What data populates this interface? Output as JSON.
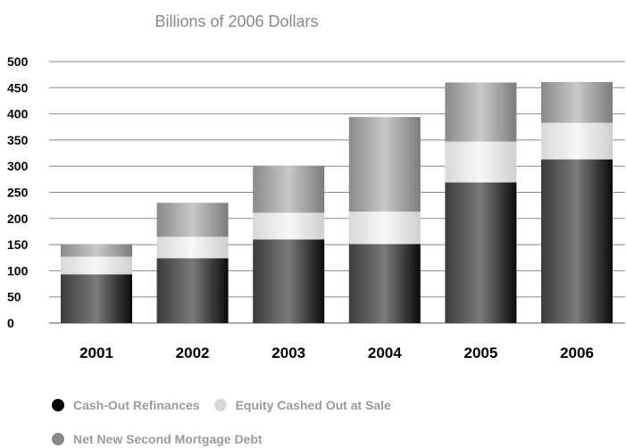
{
  "chart_data": {
    "type": "bar",
    "stacked": true,
    "title": "",
    "subtitle": "Billions of 2006 Dollars",
    "xlabel": "",
    "ylabel": "",
    "ylim": [
      0,
      500
    ],
    "yticks": [
      "0",
      "50",
      "100",
      "150",
      "200",
      "250",
      "300",
      "350",
      "400",
      "450",
      "500"
    ],
    "grid": true,
    "legend_position": "bottom-left",
    "categories": [
      "2001",
      "2002",
      "2003",
      "2004",
      "2005",
      "2006"
    ],
    "series": [
      {
        "name": "Cash-Out Refinances",
        "color": "#1a1a1a",
        "values": [
          93,
          124,
          160,
          151,
          269,
          313
        ]
      },
      {
        "name": "Equity Cashed Out at Sale",
        "color": "#e6e6e6",
        "values": [
          34,
          41,
          51,
          62,
          78,
          70
        ]
      },
      {
        "name": "Net New Second Mortgage Debt",
        "color": "#9a9a9a",
        "values": [
          24,
          65,
          90,
          181,
          113,
          78
        ]
      }
    ]
  }
}
